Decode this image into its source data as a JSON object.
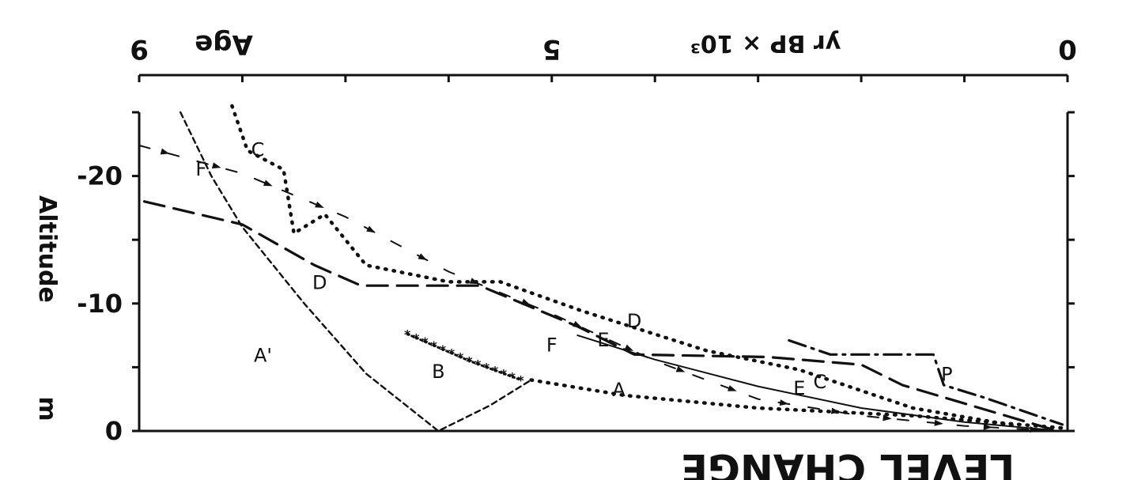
{
  "chart_data": {
    "type": "line",
    "title": "",
    "texts": {
      "top_age": "Age",
      "top_unit": "yr BP × 10³",
      "left_label": "Altitude",
      "unit_m": "m",
      "bottom_cut": "LEVEL CHANGE"
    },
    "x_axis": {
      "range": [
        9,
        0
      ],
      "reversed": true,
      "ticks": [
        9,
        8,
        7,
        6,
        5,
        4,
        3,
        2,
        1,
        0
      ],
      "labeled_ticks": [
        9,
        5,
        0
      ],
      "tick_labels": [
        "9",
        "5",
        "0"
      ]
    },
    "y_axis": {
      "range": [
        0,
        -25
      ],
      "ticks": [
        0,
        -5,
        -10,
        -15,
        -20,
        -25
      ],
      "labeled_ticks": [
        0,
        -10,
        -20
      ],
      "tick_labels": [
        "0",
        "-10",
        "-20"
      ]
    },
    "series": [
      {
        "name": "A",
        "style": "short-dash",
        "points": [
          [
            8.6,
            -25
          ],
          [
            8.3,
            -20
          ],
          [
            8.0,
            -16
          ],
          [
            7.4,
            -10
          ],
          [
            6.8,
            -4.5
          ],
          [
            6.1,
            0
          ],
          [
            5.6,
            -2
          ],
          [
            5.2,
            -4
          ]
        ]
      },
      {
        "name": "A",
        "style": "dotted",
        "points": [
          [
            5.2,
            -4
          ],
          [
            4.3,
            -2.8
          ],
          [
            3.0,
            -1.8
          ],
          [
            1.5,
            -1.2
          ],
          [
            0,
            -0.2
          ]
        ]
      },
      {
        "name": "B",
        "style": "stars",
        "points": [
          [
            6.4,
            -7.6
          ],
          [
            5.8,
            -5.5
          ],
          [
            5.3,
            -4.0
          ]
        ]
      },
      {
        "name": "C",
        "style": "dotted",
        "points": [
          [
            8.1,
            -25.5
          ],
          [
            7.95,
            -22
          ],
          [
            7.6,
            -20.5
          ],
          [
            7.5,
            -15.5
          ],
          [
            7.2,
            -17
          ],
          [
            6.8,
            -13
          ],
          [
            6.0,
            -11.7
          ],
          [
            5.5,
            -11.7
          ],
          [
            4.7,
            -9.4
          ],
          [
            3.5,
            -6.3
          ],
          [
            2.6,
            -4.8
          ],
          [
            1.5,
            -1.8
          ],
          [
            0.5,
            -0.4
          ]
        ]
      },
      {
        "name": "D",
        "style": "long-dash",
        "points": [
          [
            8.95,
            -18
          ],
          [
            8.0,
            -16.2
          ],
          [
            7.3,
            -13
          ],
          [
            6.85,
            -11.4
          ],
          [
            5.7,
            -11.4
          ],
          [
            4.75,
            -8.2
          ],
          [
            4.2,
            -6
          ],
          [
            2.9,
            -5.8
          ],
          [
            2.0,
            -5.2
          ],
          [
            1.6,
            -3.6
          ],
          [
            0.1,
            0
          ]
        ]
      },
      {
        "name": "E",
        "style": "solid",
        "points": [
          [
            4.75,
            -7.5
          ],
          [
            4.0,
            -5.6
          ],
          [
            3.0,
            -3.5
          ],
          [
            2.0,
            -1.8
          ],
          [
            1.0,
            -0.7
          ],
          [
            0.2,
            -0.1
          ]
        ]
      },
      {
        "name": "F",
        "style": "dash-arrow",
        "points": [
          [
            9.0,
            -22.4
          ],
          [
            8.0,
            -20.2
          ],
          [
            7.0,
            -16.8
          ],
          [
            6.0,
            -12.5
          ],
          [
            5.0,
            -9.2
          ],
          [
            4.0,
            -5.5
          ],
          [
            3.0,
            -2.5
          ],
          [
            2.0,
            -1.2
          ],
          [
            1.0,
            -0.4
          ],
          [
            0.1,
            0
          ]
        ]
      },
      {
        "name": "P",
        "style": "dash-dot",
        "points": [
          [
            2.7,
            -7.1
          ],
          [
            2.3,
            -6
          ],
          [
            1.3,
            -6
          ],
          [
            1.2,
            -3.6
          ],
          [
            0.8,
            -2.6
          ],
          [
            0.05,
            -0.5
          ]
        ]
      }
    ],
    "curve_labels": [
      {
        "text": "A'",
        "x": 7.8,
        "y": -6.0
      },
      {
        "text": "A",
        "x": 4.35,
        "y": -3.3
      },
      {
        "text": "B",
        "x": 6.1,
        "y": -4.7
      },
      {
        "text": "C",
        "x": 7.85,
        "y": -22.1
      },
      {
        "text": "C",
        "x": 2.4,
        "y": -3.9
      },
      {
        "text": "D",
        "x": 7.25,
        "y": -11.7
      },
      {
        "text": "D",
        "x": 4.2,
        "y": -8.7
      },
      {
        "text": "E",
        "x": 4.5,
        "y": -7.2
      },
      {
        "text": "E",
        "x": 2.6,
        "y": -3.4
      },
      {
        "text": "F",
        "x": 8.4,
        "y": -20.6
      },
      {
        "text": "F",
        "x": 5.0,
        "y": -6.8
      },
      {
        "text": "P",
        "x": 1.17,
        "y": -4.5
      }
    ],
    "grid": false,
    "legend": "none"
  }
}
